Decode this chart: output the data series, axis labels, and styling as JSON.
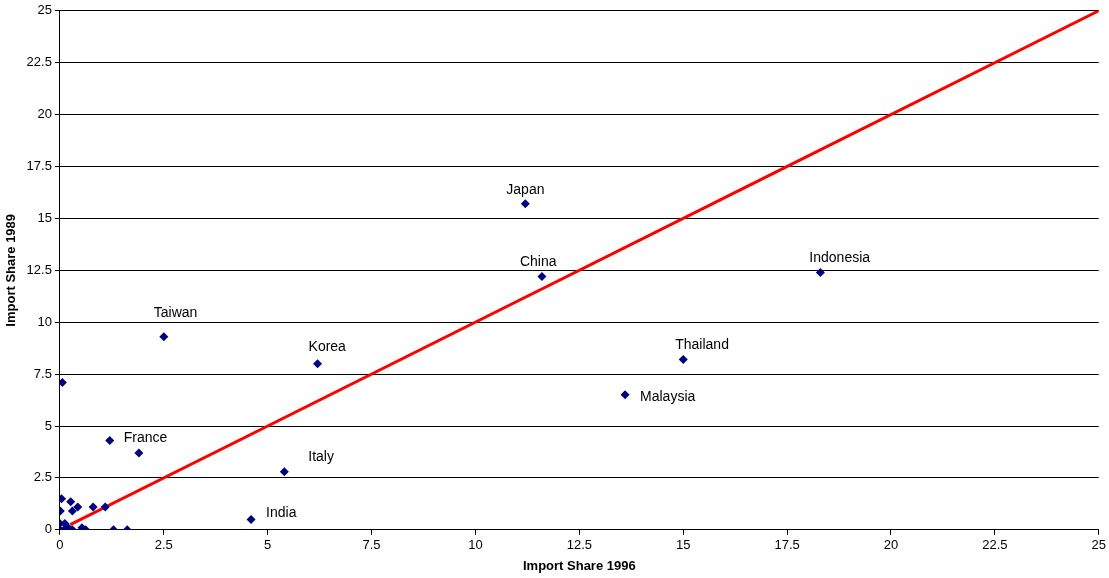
{
  "chart_data": {
    "type": "scatter",
    "xlabel": "Import Share 1996",
    "ylabel": "Import Share 1989",
    "xlim": [
      0,
      25
    ],
    "ylim": [
      0,
      25
    ],
    "xticks": [
      0,
      2.5,
      5,
      7.5,
      10,
      12.5,
      15,
      17.5,
      20,
      22.5,
      25
    ],
    "yticks": [
      0,
      2.5,
      5,
      7.5,
      10,
      12.5,
      15,
      17.5,
      20,
      22.5,
      25
    ],
    "grid": "y",
    "legend": false,
    "marker": "diamond",
    "series": [
      {
        "color": "#000080",
        "x": [
          11.2,
          11.6,
          18.3,
          15.0,
          13.6,
          2.5,
          6.2,
          5.4,
          1.2,
          1.9,
          4.6,
          0.06,
          0.04,
          0.01,
          0.26,
          0.3,
          0.43,
          0.8,
          1.09,
          1.29,
          1.62,
          0.53,
          0.62,
          0,
          0,
          0.12,
          0.2,
          0.3,
          0.1
        ],
        "values": [
          15.7,
          12.2,
          12.4,
          8.2,
          6.5,
          9.3,
          8.0,
          2.8,
          4.3,
          3.7,
          0.5,
          7.1,
          1.5,
          0.9,
          1.35,
          0.9,
          1.1,
          1.1,
          1.1,
          0,
          0,
          0.1,
          0,
          0.3,
          0,
          0.3,
          0.1,
          0,
          0
        ]
      },
      {
        "type": "line",
        "color": "#ff0000",
        "marker": "none",
        "line_style": "solid",
        "x": [
          0.25,
          25
        ],
        "values": [
          0.25,
          25
        ]
      }
    ],
    "annotations": [
      {
        "text": "Japan",
        "x": 11.2,
        "y": 15.7
      },
      {
        "text": "China",
        "x": 11.6,
        "y": 12.2
      },
      {
        "text": "Indonesia",
        "x": 18.3,
        "y": 12.4
      },
      {
        "text": "Thailand",
        "x": 15.0,
        "y": 8.2
      },
      {
        "text": "Malaysia",
        "x": 13.6,
        "y": 6.5
      },
      {
        "text": "Taiwan",
        "x": 2.5,
        "y": 9.3
      },
      {
        "text": "Korea",
        "x": 6.2,
        "y": 8.0
      },
      {
        "text": "Italy",
        "x": 5.4,
        "y": 2.8
      },
      {
        "text": "France",
        "x": 1.2,
        "y": 4.3
      },
      {
        "text": "India",
        "x": 4.6,
        "y": 0.5
      }
    ]
  }
}
